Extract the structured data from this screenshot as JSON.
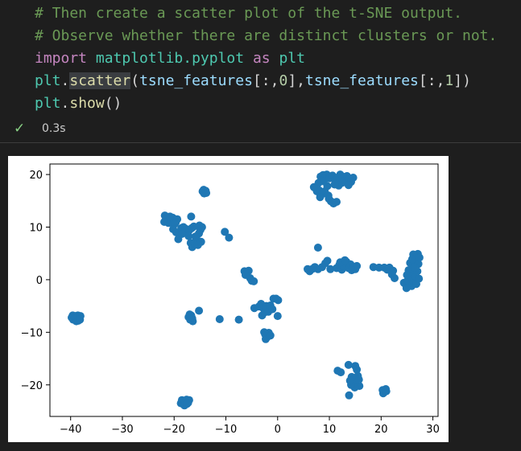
{
  "code": {
    "lines": [
      {
        "tokens": [
          {
            "t": "# Then create a scatter plot of the t-SNE output.",
            "c": "comment"
          }
        ]
      },
      {
        "tokens": [
          {
            "t": "# Observe whether there are distinct clusters or not.",
            "c": "comment"
          }
        ]
      },
      {
        "tokens": [
          {
            "t": "import",
            "c": "kw"
          },
          {
            "t": " ",
            "c": "plain"
          },
          {
            "t": "matplotlib.pyplot",
            "c": "mod"
          },
          {
            "t": " ",
            "c": "plain"
          },
          {
            "t": "as",
            "c": "kw"
          },
          {
            "t": " ",
            "c": "plain"
          },
          {
            "t": "plt",
            "c": "mod"
          }
        ]
      },
      {
        "tokens": [
          {
            "t": "plt",
            "c": "mod"
          },
          {
            "t": ".",
            "c": "plain"
          },
          {
            "t": "scatter",
            "c": "fn sel"
          },
          {
            "t": "(",
            "c": "plain"
          },
          {
            "t": "tsne_features",
            "c": "var"
          },
          {
            "t": "[:,",
            "c": "plain"
          },
          {
            "t": "0",
            "c": "num"
          },
          {
            "t": "],",
            "c": "plain"
          },
          {
            "t": "tsne_features",
            "c": "var"
          },
          {
            "t": "[:,",
            "c": "plain"
          },
          {
            "t": "1",
            "c": "num"
          },
          {
            "t": "])",
            "c": "plain"
          }
        ]
      },
      {
        "tokens": [
          {
            "t": "plt",
            "c": "mod"
          },
          {
            "t": ".",
            "c": "plain"
          },
          {
            "t": "show",
            "c": "fn"
          },
          {
            "t": "()",
            "c": "plain"
          }
        ]
      }
    ]
  },
  "status": {
    "check_icon": "checkmark-icon",
    "exec_time": "0.3s"
  },
  "colors": {
    "marker": "#1f77b4",
    "comment": "#6a9955",
    "keyword": "#c586c0",
    "module": "#4ec9b0",
    "function": "#dcdcaa",
    "variable": "#9cdcfe",
    "number": "#b5cea8",
    "check": "#89d185"
  },
  "chart_data": {
    "type": "scatter",
    "title": "",
    "xlabel": "",
    "ylabel": "",
    "xlim": [
      -44,
      31
    ],
    "ylim": [
      -26,
      22
    ],
    "xticks": [
      -40,
      -30,
      -20,
      -10,
      0,
      10,
      20,
      30
    ],
    "xtick_labels": [
      "−40",
      "−30",
      "−20",
      "−10",
      "0",
      "10",
      "20",
      "30"
    ],
    "yticks": [
      -20,
      -10,
      0,
      10,
      20
    ],
    "ytick_labels": [
      "−20",
      "−10",
      "0",
      "10",
      "20"
    ],
    "grid": false,
    "points": [
      [
        -39.8,
        -7.2
      ],
      [
        -39.5,
        -7.6
      ],
      [
        -39.1,
        -6.9
      ],
      [
        -38.8,
        -7.4
      ],
      [
        -38.5,
        -7.8
      ],
      [
        -38.3,
        -7.1
      ],
      [
        -38.1,
        -6.9
      ],
      [
        -39.3,
        -7.0
      ],
      [
        -38.9,
        -7.9
      ],
      [
        -38.6,
        -6.8
      ],
      [
        -38.2,
        -7.6
      ],
      [
        -39.6,
        -6.8
      ],
      [
        -18.7,
        -23.5
      ],
      [
        -18.5,
        -22.9
      ],
      [
        -18.2,
        -23.7
      ],
      [
        -17.9,
        -23.2
      ],
      [
        -17.6,
        -22.8
      ],
      [
        -17.3,
        -23.4
      ],
      [
        -17.1,
        -22.9
      ],
      [
        -18.0,
        -23.9
      ],
      [
        -17.5,
        -23.6
      ],
      [
        -17.2,
        -7.1
      ],
      [
        -16.9,
        -7.6
      ],
      [
        -16.7,
        -6.8
      ],
      [
        -16.5,
        -7.4
      ],
      [
        -16.4,
        -7.9
      ],
      [
        -17.0,
        -6.6
      ],
      [
        -16.6,
        -7.2
      ],
      [
        -15.2,
        -5.9
      ],
      [
        -11.2,
        -7.5
      ],
      [
        -7.5,
        -7.6
      ],
      [
        -14.5,
        16.8
      ],
      [
        -14.2,
        16.4
      ],
      [
        -13.9,
        16.9
      ],
      [
        -14.3,
        17.1
      ],
      [
        -13.8,
        16.5
      ],
      [
        -21.8,
        12.2
      ],
      [
        -21.5,
        11.4
      ],
      [
        -21.1,
        10.8
      ],
      [
        -20.9,
        11.6
      ],
      [
        -20.6,
        10.9
      ],
      [
        -20.3,
        11.8
      ],
      [
        -20.0,
        11.2
      ],
      [
        -19.7,
        10.9
      ],
      [
        -19.4,
        11.5
      ],
      [
        -21.9,
        11.0
      ],
      [
        -20.8,
        12.0
      ],
      [
        -19.9,
        10.6
      ],
      [
        -20.2,
        9.6
      ],
      [
        -19.6,
        9.0
      ],
      [
        -19.2,
        7.7
      ],
      [
        -18.6,
        9.8
      ],
      [
        -18.2,
        10.0
      ],
      [
        -17.8,
        9.7
      ],
      [
        -17.4,
        9.2
      ],
      [
        -17.0,
        9.5
      ],
      [
        -16.6,
        9.8
      ],
      [
        -16.2,
        10.1
      ],
      [
        -17.2,
        8.3
      ],
      [
        -16.8,
        7.0
      ],
      [
        -16.5,
        6.2
      ],
      [
        -16.0,
        6.8
      ],
      [
        -15.6,
        7.6
      ],
      [
        -15.2,
        8.8
      ],
      [
        -14.9,
        9.5
      ],
      [
        -14.6,
        10.0
      ],
      [
        -14.8,
        7.2
      ],
      [
        -15.4,
        6.6
      ],
      [
        -16.7,
        12.0
      ],
      [
        -18.5,
        8.7
      ],
      [
        -15.9,
        8.2
      ],
      [
        -15.1,
        10.3
      ],
      [
        -10.2,
        9.1
      ],
      [
        -9.4,
        8.0
      ],
      [
        -6.4,
        1.6
      ],
      [
        -6.0,
        1.2
      ],
      [
        -5.6,
        1.7
      ],
      [
        -5.3,
        0.3
      ],
      [
        -5.0,
        -0.2
      ],
      [
        -4.6,
        -0.3
      ],
      [
        -6.2,
        0.9
      ],
      [
        -4.5,
        -5.4
      ],
      [
        -3.6,
        -5.1
      ],
      [
        -3.2,
        -4.6
      ],
      [
        -2.8,
        -5.4
      ],
      [
        -2.5,
        -6.2
      ],
      [
        -2.2,
        -5.0
      ],
      [
        -1.8,
        -6.1
      ],
      [
        -1.4,
        -4.9
      ],
      [
        -1.0,
        -5.6
      ],
      [
        -3.0,
        -6.8
      ],
      [
        -0.8,
        -3.6
      ],
      [
        -0.3,
        -3.6
      ],
      [
        0.1,
        -3.9
      ],
      [
        0.0,
        -6.9
      ],
      [
        -2.4,
        -10.4
      ],
      [
        -2.0,
        -10.9
      ],
      [
        -2.3,
        -11.3
      ],
      [
        -1.7,
        -10.1
      ],
      [
        -1.4,
        -10.6
      ],
      [
        -2.6,
        -10.0
      ],
      [
        7.0,
        17.6
      ],
      [
        7.6,
        16.8
      ],
      [
        7.9,
        18.4
      ],
      [
        8.3,
        19.6
      ],
      [
        8.8,
        19.9
      ],
      [
        9.2,
        19.4
      ],
      [
        8.0,
        17.0
      ],
      [
        8.5,
        16.2
      ],
      [
        9.1,
        16.8
      ],
      [
        9.6,
        17.8
      ],
      [
        9.9,
        15.4
      ],
      [
        10.3,
        14.9
      ],
      [
        10.8,
        14.5
      ],
      [
        11.4,
        14.8
      ],
      [
        8.9,
        18.7
      ],
      [
        9.5,
        20.0
      ],
      [
        10.0,
        19.3
      ],
      [
        10.6,
        19.8
      ],
      [
        11.1,
        18.9
      ],
      [
        11.6,
        19.4
      ],
      [
        12.1,
        20.0
      ],
      [
        12.6,
        19.6
      ],
      [
        13.0,
        18.9
      ],
      [
        13.4,
        19.7
      ],
      [
        13.9,
        19.2
      ],
      [
        14.2,
        18.6
      ],
      [
        14.6,
        19.4
      ],
      [
        12.4,
        18.4
      ],
      [
        11.8,
        17.9
      ],
      [
        11.0,
        18.1
      ],
      [
        9.8,
        16.0
      ],
      [
        7.4,
        17.3
      ],
      [
        8.2,
        15.7
      ],
      [
        13.7,
        18.0
      ],
      [
        5.8,
        2.0
      ],
      [
        6.2,
        1.6
      ],
      [
        6.8,
        2.1
      ],
      [
        7.2,
        2.4
      ],
      [
        7.8,
        2.0
      ],
      [
        7.8,
        6.1
      ],
      [
        8.6,
        2.4
      ],
      [
        9.2,
        3.1
      ],
      [
        9.6,
        3.6
      ],
      [
        10.2,
        2.0
      ],
      [
        11.4,
        2.2
      ],
      [
        11.9,
        2.8
      ],
      [
        12.4,
        1.9
      ],
      [
        12.8,
        2.6
      ],
      [
        13.3,
        3.4
      ],
      [
        13.7,
        2.2
      ],
      [
        14.1,
        2.9
      ],
      [
        14.5,
        2.4
      ],
      [
        15.0,
        2.0
      ],
      [
        15.3,
        2.6
      ],
      [
        12.1,
        3.3
      ],
      [
        13.0,
        3.7
      ],
      [
        14.3,
        1.8
      ],
      [
        18.5,
        2.4
      ],
      [
        19.6,
        2.3
      ],
      [
        20.6,
        2.3
      ],
      [
        21.2,
        1.9
      ],
      [
        21.6,
        2.3
      ],
      [
        22.1,
        1.0
      ],
      [
        22.6,
        0.3
      ],
      [
        22.3,
        1.7
      ],
      [
        24.4,
        -0.6
      ],
      [
        24.8,
        -1.0
      ],
      [
        25.1,
        -0.2
      ],
      [
        25.5,
        0.5
      ],
      [
        25.8,
        1.2
      ],
      [
        26.1,
        2.0
      ],
      [
        26.4,
        2.8
      ],
      [
        26.6,
        3.6
      ],
      [
        26.9,
        4.4
      ],
      [
        27.1,
        4.9
      ],
      [
        25.9,
        -1.2
      ],
      [
        26.3,
        -0.4
      ],
      [
        26.7,
        0.6
      ],
      [
        27.0,
        1.6
      ],
      [
        27.2,
        3.0
      ],
      [
        26.2,
        4.8
      ],
      [
        25.6,
        3.2
      ],
      [
        25.3,
        1.8
      ],
      [
        24.9,
        -1.6
      ],
      [
        26.8,
        -0.8
      ],
      [
        27.3,
        0.2
      ],
      [
        25.0,
        0.9
      ],
      [
        26.5,
        2.3
      ],
      [
        26.0,
        3.9
      ],
      [
        27.4,
        4.2
      ],
      [
        11.6,
        -17.3
      ],
      [
        12.2,
        -17.6
      ],
      [
        13.7,
        -16.2
      ],
      [
        15.0,
        -16.4
      ],
      [
        15.3,
        -17.1
      ],
      [
        14.3,
        -18.5
      ],
      [
        14.6,
        -19.1
      ],
      [
        15.0,
        -18.7
      ],
      [
        15.4,
        -19.5
      ],
      [
        15.8,
        -20.2
      ],
      [
        15.5,
        -18.3
      ],
      [
        14.9,
        -20.5
      ],
      [
        14.2,
        -20.0
      ],
      [
        13.8,
        -22.0
      ],
      [
        15.7,
        -19.0
      ],
      [
        14.0,
        -19.2
      ],
      [
        20.3,
        -21.0
      ],
      [
        20.6,
        -21.4
      ],
      [
        20.9,
        -20.8
      ],
      [
        20.4,
        -21.6
      ],
      [
        21.0,
        -21.2
      ]
    ]
  }
}
